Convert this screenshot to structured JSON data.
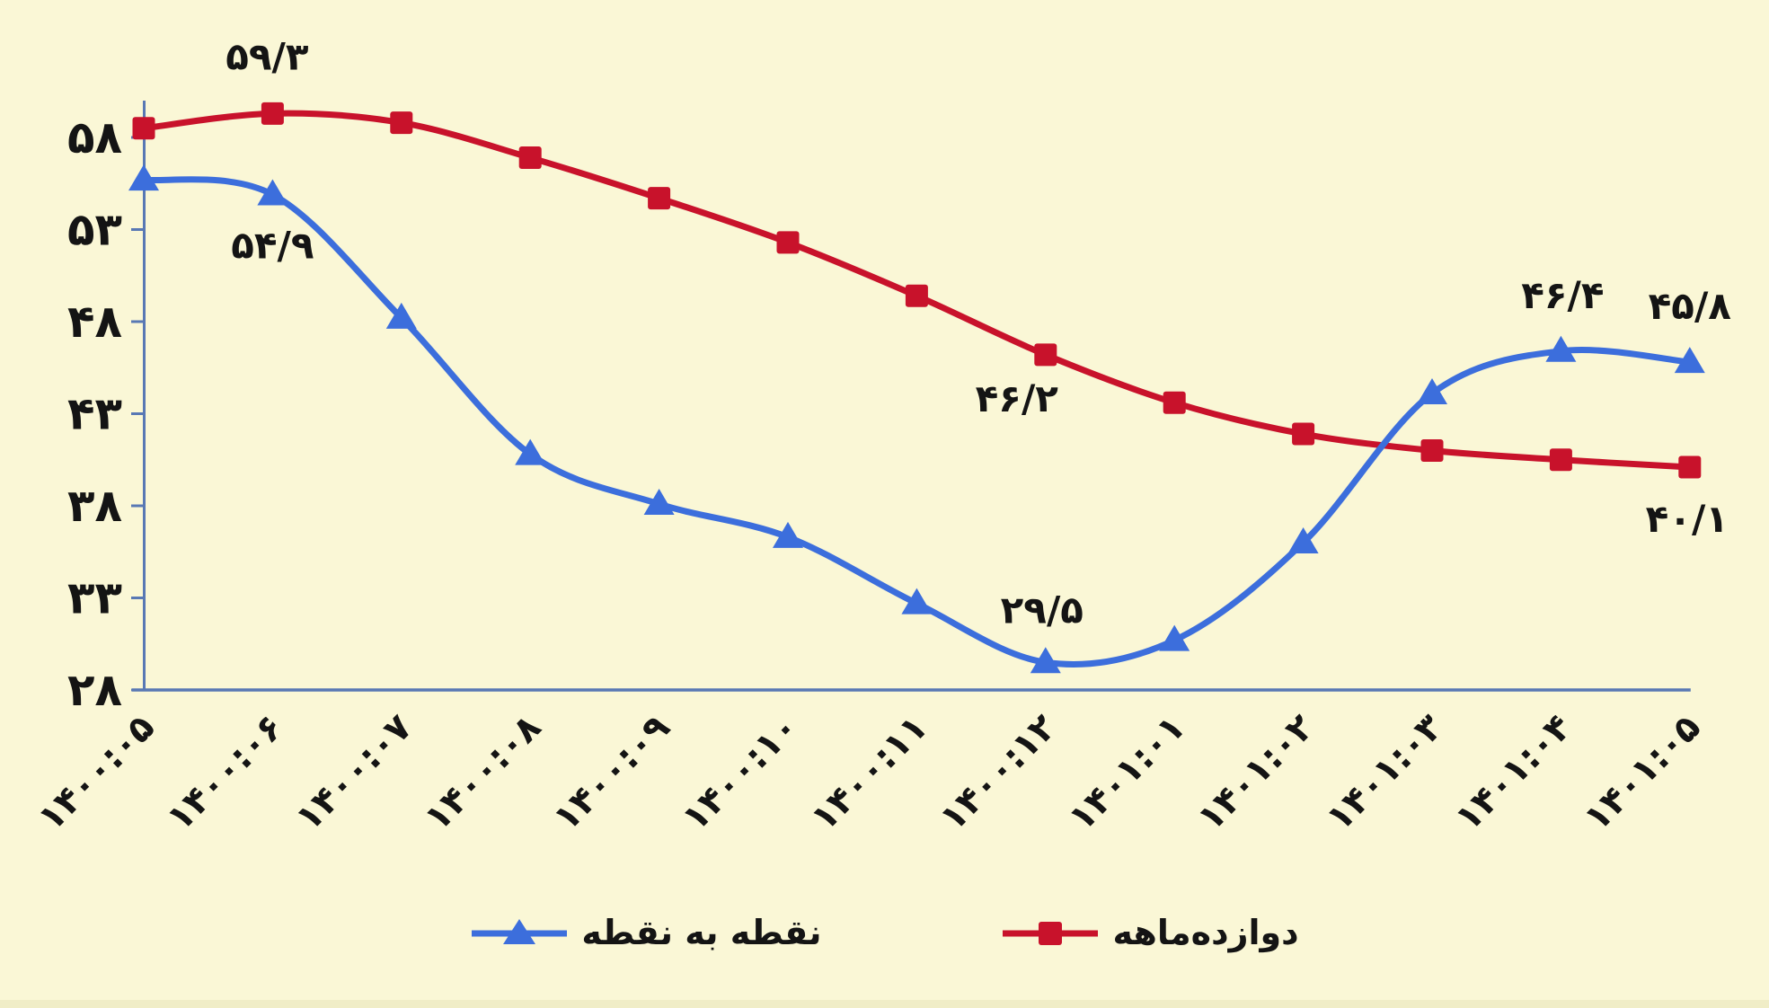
{
  "background": "#FAF7D6",
  "chart_data": {
    "type": "line",
    "title": "",
    "categories": [
      "۱۴۰۰:۰۵",
      "۱۴۰۰:۰۶",
      "۱۴۰۰:۰۷",
      "۱۴۰۰:۰۸",
      "۱۴۰۰:۰۹",
      "۱۴۰۰:۱۰",
      "۱۴۰۰:۱۱",
      "۱۴۰۰:۱۲",
      "۱۴۰۱:۰۱",
      "۱۴۰۱:۰۲",
      "۱۴۰۱:۰۳",
      "۱۴۰۱:۰۴",
      "۱۴۰۱:۰۵"
    ],
    "series": [
      {
        "name": "نقطه به نقطه",
        "color": "#3C6EDC",
        "marker": "triangle",
        "values": [
          55.7,
          54.9,
          48.2,
          40.8,
          38.1,
          36.3,
          32.7,
          29.5,
          30.7,
          36.0,
          44.1,
          46.4,
          45.8
        ],
        "point_labels": [
          {
            "index": 1,
            "text": "۵۴/۹",
            "dx": 0,
            "dy": 56
          },
          {
            "index": 7,
            "text": "۲۹/۵",
            "dx": -4,
            "dy": -59
          },
          {
            "index": 11,
            "text": "۴۶/۴",
            "dx": 2,
            "dy": -63
          },
          {
            "index": 12,
            "text": "۴۵/۸",
            "dx": 0,
            "dy": -63
          }
        ]
      },
      {
        "name": "دوازده‌ماهه",
        "color": "#C8122B",
        "marker": "square",
        "values": [
          58.5,
          59.3,
          58.8,
          56.9,
          54.7,
          52.3,
          49.4,
          46.2,
          43.6,
          41.9,
          41.0,
          40.5,
          40.1
        ],
        "point_labels": [
          {
            "index": 1,
            "text": "۵۹/۳",
            "dx": -6,
            "dy": -64
          },
          {
            "index": 7,
            "text": "۴۶/۲",
            "dx": -32,
            "dy": 48
          },
          {
            "index": 12,
            "text": "۴۰/۱",
            "dx": -3,
            "dy": 57
          }
        ]
      }
    ],
    "y_axis": {
      "min": 28,
      "max": 58,
      "tick_step": 5,
      "tick_labels": [
        "۲۸",
        "۳۳",
        "۳۸",
        "۴۳",
        "۴۸",
        "۵۳",
        "۵۸"
      ]
    },
    "legend": [
      "نقطه به نقطه",
      "دوازده‌ماهه"
    ],
    "legend_position": "bottom",
    "grid": false,
    "axis_color": "#5878B4",
    "text_color": "#141414"
  }
}
